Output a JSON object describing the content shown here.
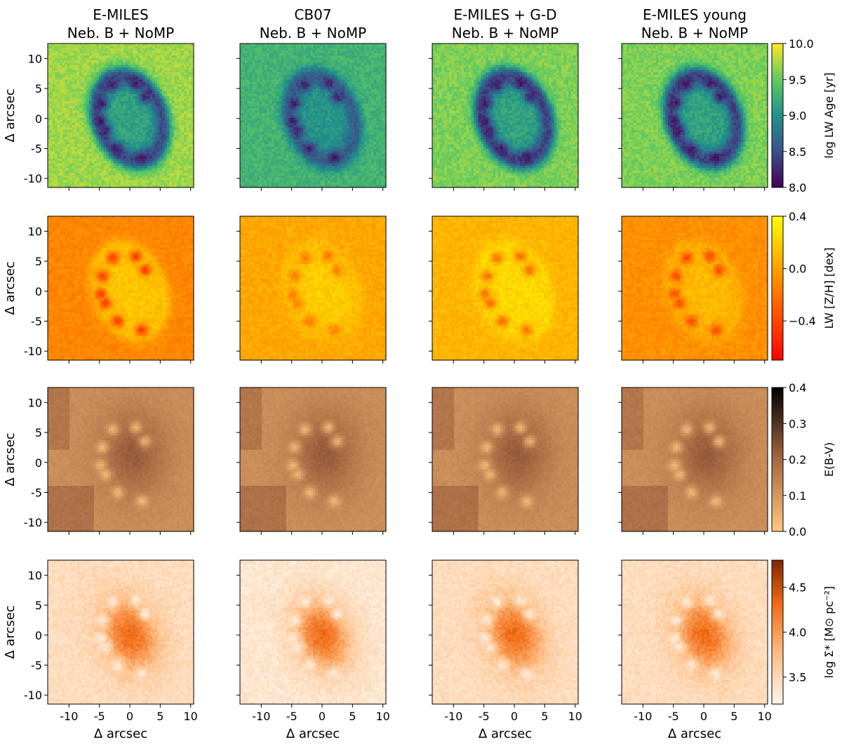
{
  "chart_data": {
    "type": "heatmap",
    "columns": [
      {
        "title_line1": "E-MILES",
        "title_line2": "Neb. B + NoMP"
      },
      {
        "title_line1": "CB07",
        "title_line2": "Neb. B + NoMP"
      },
      {
        "title_line1": "E-MILES + G-D",
        "title_line2": "Neb. B + NoMP"
      },
      {
        "title_line1": "E-MILES young",
        "title_line2": "Neb. B + NoMP"
      }
    ],
    "xlabel": "Δ arcsec",
    "ylabel": "Δ arcsec",
    "x_ticks": [
      "-10",
      "-5",
      "0",
      "5",
      "10"
    ],
    "y_ticks": [
      "10",
      "5",
      "0",
      "-5",
      "-10"
    ],
    "x_range": [
      -13.5,
      10.5
    ],
    "y_range": [
      -11.5,
      12.5
    ],
    "rows": [
      {
        "quantity": "age",
        "colorbar_label": "log LW Age [yr]",
        "colormap": "viridis",
        "vmin": 8.0,
        "vmax": 10.0,
        "colorbar_ticks": [
          "10.0",
          "9.5",
          "9.0",
          "8.5",
          "8.0"
        ],
        "outer_level": [
          9.7,
          9.3,
          9.6,
          9.6
        ],
        "ring_level": [
          8.45,
          8.6,
          8.4,
          8.4
        ],
        "center_level": [
          9.1,
          9.0,
          9.1,
          9.1
        ],
        "knot_level": [
          8.1,
          8.1,
          8.1,
          8.1
        ]
      },
      {
        "quantity": "metallicity",
        "colorbar_label": "LW [Z/H] [dex]",
        "colormap": "autumn",
        "vmin": -0.7,
        "vmax": 0.4,
        "colorbar_ticks": [
          "0.4",
          "0.0",
          "−0.4"
        ],
        "outer_level": [
          -0.12,
          0.02,
          0.08,
          -0.08
        ],
        "ring_level": [
          0.12,
          0.12,
          0.22,
          0.05
        ],
        "center_level": [
          0.18,
          0.2,
          0.25,
          0.12
        ],
        "knot_level": [
          -0.55,
          -0.2,
          -0.3,
          -0.45
        ]
      },
      {
        "quantity": "extinction",
        "colorbar_label": "E(B-V)",
        "colormap": "copper_r",
        "vmin": 0.0,
        "vmax": 0.4,
        "colorbar_ticks": [
          "0.4",
          "0.3",
          "0.2",
          "0.1",
          "0.0"
        ],
        "outer_level": [
          0.12,
          0.12,
          0.12,
          0.12
        ],
        "ring_level": [
          0.22,
          0.22,
          0.22,
          0.22
        ],
        "center_level": [
          0.25,
          0.25,
          0.25,
          0.25
        ],
        "knot_level": [
          0.02,
          0.02,
          0.02,
          0.02
        ]
      },
      {
        "quantity": "mass_density",
        "colorbar_label": "log Σ* [M⊙ pc⁻²]",
        "colormap": "oranges",
        "vmin": 3.2,
        "vmax": 4.8,
        "colorbar_ticks": [
          "4.5",
          "4.0",
          "3.5"
        ],
        "outer_level": [
          3.45,
          3.35,
          3.45,
          3.45
        ],
        "ring_level": [
          3.75,
          3.6,
          3.75,
          3.75
        ],
        "center_level": [
          4.3,
          4.3,
          4.3,
          4.3
        ],
        "knot_level": [
          3.25,
          3.25,
          3.25,
          3.25
        ]
      }
    ]
  }
}
